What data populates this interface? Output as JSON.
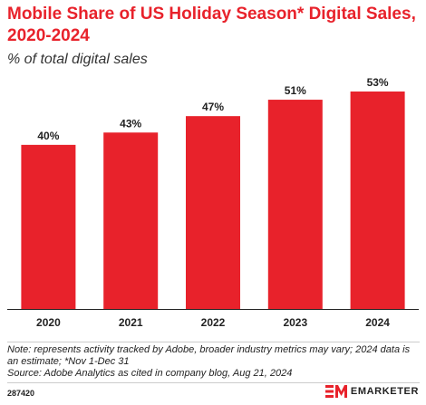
{
  "header": {
    "title": "Mobile Share of US Holiday Season* Digital Sales, 2020-2024",
    "subtitle": "% of total digital sales"
  },
  "chart_data": {
    "type": "bar",
    "title": "Mobile Share of US Holiday Season* Digital Sales, 2020-2024",
    "subtitle": "% of total digital sales",
    "categories": [
      "2020",
      "2021",
      "2022",
      "2023",
      "2024"
    ],
    "values": [
      40,
      43,
      47,
      51,
      53
    ],
    "data_labels": [
      "40%",
      "43%",
      "47%",
      "51%",
      "53%"
    ],
    "xlabel": "",
    "ylabel": "",
    "ylim": [
      0,
      53
    ],
    "grid": false,
    "legend": "none",
    "bar_color": "#e8222b"
  },
  "notes": {
    "note": "Note: represents activity tracked by Adobe, broader industry metrics may vary; 2024 data is an estimate; *Nov 1-Dec 31",
    "source": "Source: Adobe Analytics as cited in company blog, Aug 21, 2024"
  },
  "footer": {
    "chart_id": "287420",
    "brand": "EMARKETER",
    "brand_color": "#e8222b"
  }
}
